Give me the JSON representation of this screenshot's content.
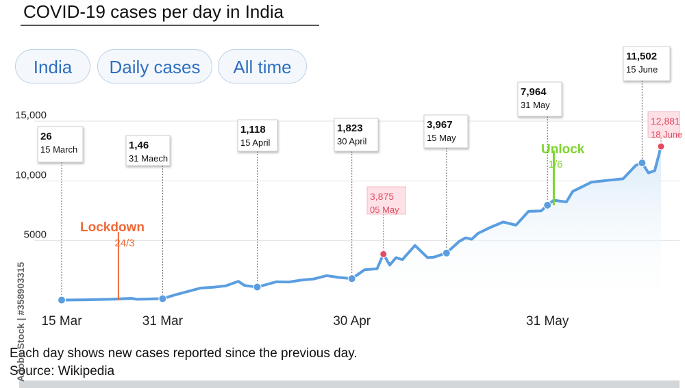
{
  "title": "COVID-19 cases per day in India",
  "filters": [
    "India",
    "Daily cases",
    "All time"
  ],
  "note": "Each day shows new cases reported since the previous day.",
  "source": "Source:  Wikipedia",
  "watermark": "Adobe Stock | #358903315",
  "colors": {
    "line": "#5b9ee0",
    "area_top": "#d7e9f8",
    "highlight_red": "#e34b63",
    "lockdown": "#f06a3a",
    "unlock": "#7ed42e",
    "grid": "#e3e3e3"
  },
  "chart_data": {
    "type": "area",
    "title": "COVID-19 cases per day in India",
    "xlabel": "",
    "ylabel": "",
    "ylim": [
      0,
      15000
    ],
    "yticks": [
      {
        "value": 15000,
        "label": "15,000"
      },
      {
        "value": 10000,
        "label": "10,000"
      },
      {
        "value": 5000,
        "label": "5000"
      }
    ],
    "xlim": [
      "2020-03-15",
      "2020-06-18"
    ],
    "xticks": [
      {
        "date": "2020-03-15",
        "label": "15 Mar"
      },
      {
        "date": "2020-03-31",
        "label": "31 Mar"
      },
      {
        "date": "2020-04-30",
        "label": "30 Apr"
      },
      {
        "date": "2020-05-31",
        "label": "31 May"
      }
    ],
    "grid": true,
    "series": [
      {
        "x": [
          "2020-03-15",
          "2020-03-19",
          "2020-03-23",
          "2020-03-26",
          "2020-03-27",
          "2020-03-31",
          "2020-04-02",
          "2020-04-04",
          "2020-04-06",
          "2020-04-08",
          "2020-04-10",
          "2020-04-12",
          "2020-04-13",
          "2020-04-15",
          "2020-04-16",
          "2020-04-18",
          "2020-04-20",
          "2020-04-22",
          "2020-04-24",
          "2020-04-26",
          "2020-04-28",
          "2020-04-30",
          "2020-05-02",
          "2020-05-04",
          "2020-05-05",
          "2020-05-06",
          "2020-05-07",
          "2020-05-08",
          "2020-05-10",
          "2020-05-12",
          "2020-05-13",
          "2020-05-15",
          "2020-05-17",
          "2020-05-18",
          "2020-05-19",
          "2020-05-20",
          "2020-05-22",
          "2020-05-24",
          "2020-05-26",
          "2020-05-28",
          "2020-05-30",
          "2020-05-31",
          "2020-06-01",
          "2020-06-03",
          "2020-06-04",
          "2020-06-07",
          "2020-06-12",
          "2020-06-14",
          "2020-06-15",
          "2020-06-16",
          "2020-06-17",
          "2020-06-18"
        ],
        "y": [
          26,
          50,
          95,
          170,
          90,
          146,
          470,
          750,
          1030,
          1100,
          1220,
          1600,
          1250,
          1118,
          1260,
          1560,
          1540,
          1700,
          1800,
          2070,
          1920,
          1823,
          2560,
          2650,
          3875,
          2960,
          3580,
          3410,
          4600,
          3580,
          3620,
          3967,
          4930,
          5230,
          5120,
          5610,
          6120,
          6560,
          6300,
          7450,
          7490,
          7964,
          8380,
          8240,
          9120,
          9900,
          10180,
          11300,
          11502,
          10670,
          10850,
          12881
        ]
      }
    ],
    "highlighted_points": [
      {
        "date": "2020-03-15",
        "value": "26",
        "label": "15 March",
        "color": "blue"
      },
      {
        "date": "2020-03-31",
        "value": "1,46",
        "label": "31 Maech",
        "color": "blue"
      },
      {
        "date": "2020-04-15",
        "value": "1,118",
        "label": "15 April",
        "color": "blue"
      },
      {
        "date": "2020-04-30",
        "value": "1,823",
        "label": "30 April",
        "color": "blue"
      },
      {
        "date": "2020-05-05",
        "value": "3,875",
        "label": "05 May",
        "color": "red"
      },
      {
        "date": "2020-05-15",
        "value": "3,967",
        "label": "15 May",
        "color": "blue"
      },
      {
        "date": "2020-05-31",
        "value": "7,964",
        "label": "31  May",
        "color": "blue"
      },
      {
        "date": "2020-06-15",
        "value": "11,502",
        "label": "15 June",
        "color": "blue"
      },
      {
        "date": "2020-06-18",
        "value": "12,881",
        "label": "18 June",
        "color": "red"
      }
    ],
    "annotations": [
      {
        "label": "Lockdown",
        "sub": "24/3",
        "date": "2020-03-24",
        "color": "orange"
      },
      {
        "label": "Unlock",
        "sub": "1/6",
        "date": "2020-06-01",
        "color": "green"
      }
    ]
  }
}
